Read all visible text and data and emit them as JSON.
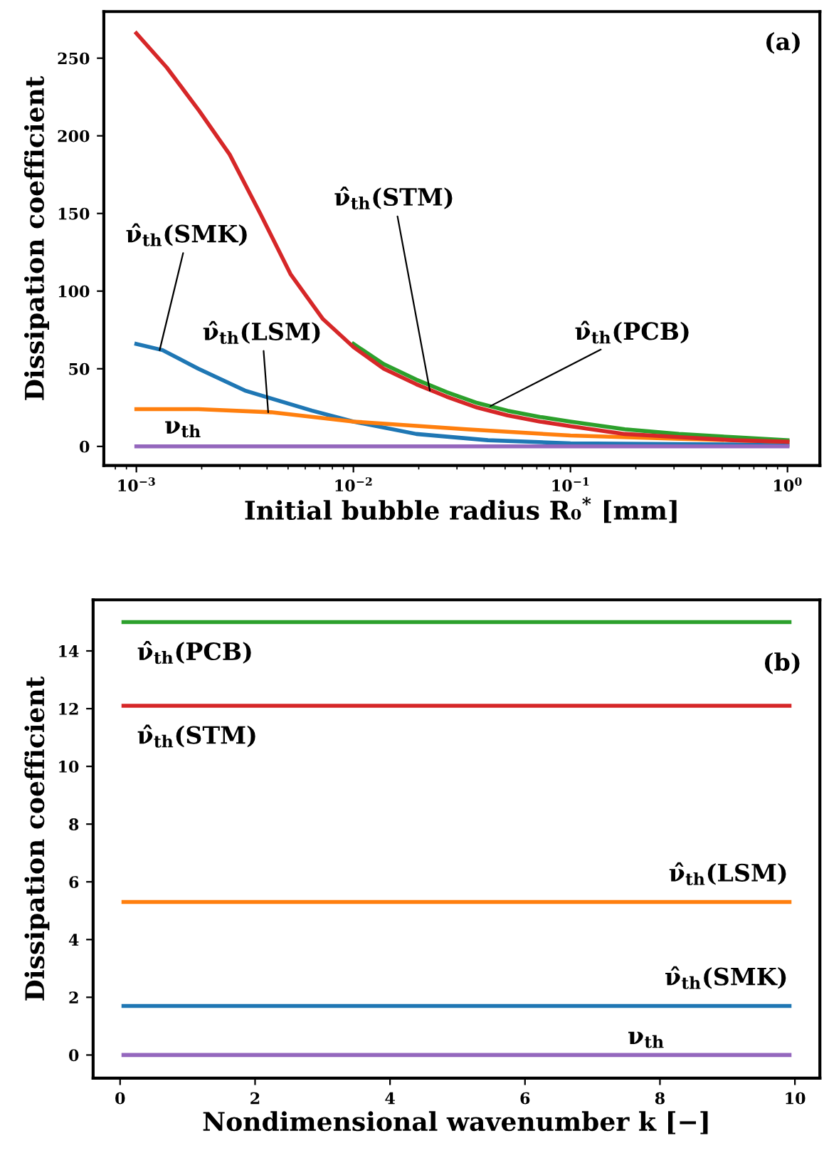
{
  "chart_data": [
    {
      "type": "line",
      "ylabel": "Dissipation coefficient",
      "xlabel": "Initial bubble radius R₀$^{*}$ [mm]",
      "log": "x",
      "x": [
        0.001,
        0.00138,
        0.00195,
        0.00269,
        0.00372,
        0.00513,
        0.00724,
        0.01,
        0.0138,
        0.0195,
        0.0269,
        0.0372,
        0.0513,
        0.0724,
        0.1,
        0.178,
        0.316,
        0.562,
        1.0
      ],
      "xlim": [
        0.000708,
        1.41
      ],
      "ylim": [
        -12.3,
        280
      ],
      "xticks": [
        {
          "value": 0.001,
          "label": "10$^{−3}$"
        },
        {
          "value": 0.01,
          "label": "10$^{−2}$"
        },
        {
          "value": 0.1,
          "label": "10$^{−1}$"
        },
        {
          "value": 1,
          "label": "10$^{0}$"
        }
      ],
      "yticks": [
        0,
        50,
        100,
        150,
        200,
        250
      ],
      "grid": false,
      "legend": false,
      "series": [
        {
          "color": "#1f77b4",
          "x": [
            0.001,
            0.00132,
            0.00193,
            0.00316,
            0.00372,
            0.00645,
            0.01,
            0.0195,
            0.0417,
            0.1,
            1.0
          ],
          "values": [
            66,
            62,
            50,
            36,
            33,
            23,
            16,
            8,
            4,
            2,
            1
          ]
        },
        {
          "color": "#ff7f0e",
          "x": [
            0.001,
            0.00193,
            0.00417,
            0.01,
            0.0331,
            0.1,
            0.302,
            1.0
          ],
          "values": [
            24,
            24,
            22,
            16,
            11,
            7,
            5,
            3
          ]
        },
        {
          "color": "#2ca02c",
          "x": [
            0.01,
            0.0138,
            0.0195,
            0.0269,
            0.0372,
            0.0513,
            0.0724,
            0.1,
            0.178,
            0.316,
            0.562,
            1.0
          ],
          "values": [
            66,
            53,
            43,
            35,
            28,
            23,
            19,
            16,
            11,
            8,
            6,
            4
          ]
        },
        {
          "color": "#d62728",
          "values": [
            266,
            244,
            216,
            188,
            150,
            111,
            82,
            64,
            50,
            40,
            32,
            25,
            20,
            16,
            13,
            8,
            6,
            4,
            3
          ]
        },
        {
          "color": "#9467bd",
          "x": [
            0.001,
            1.0
          ],
          "values": [
            0,
            0
          ]
        }
      ],
      "annotations": [
        {
          "text": "ν̂$_{th}$(SMK)",
          "x": 0.00128,
          "y": 62
        },
        {
          "text": "ν̂$_{th}$(LSM)",
          "x": 0.00405,
          "y": 22
        },
        {
          "text": "ν̂$_{th}$(STM)",
          "x": 0.0225,
          "y": 36
        },
        {
          "text": "ν̂$_{th}$(PCB)",
          "x": 0.0428,
          "y": 26
        },
        {
          "text": "ν$_{th}$",
          "x": 0.00164,
          "y": 0
        },
        "(a)"
      ]
    },
    {
      "type": "line",
      "ylabel": "Dissipation coefficient",
      "xlabel": "Nondimensional wavenumber k [−]",
      "x": [
        0.05,
        9.92
      ],
      "xlim": [
        -0.4,
        10.37
      ],
      "ylim": [
        -0.8,
        15.77
      ],
      "xticks": [
        0,
        2,
        4,
        6,
        8,
        10
      ],
      "yticks": [
        0,
        2,
        4,
        6,
        8,
        10,
        12,
        14
      ],
      "grid": false,
      "legend": false,
      "series": [
        {
          "color": "#2ca02c",
          "values": [
            15.0,
            15.0
          ]
        },
        {
          "color": "#d62728",
          "values": [
            12.1,
            12.1
          ]
        },
        {
          "color": "#ff7f0e",
          "values": [
            5.3,
            5.3
          ]
        },
        {
          "color": "#1f77b4",
          "values": [
            1.7,
            1.7
          ]
        },
        {
          "color": "#9467bd",
          "values": [
            0,
            0
          ]
        }
      ],
      "annotations": [
        {
          "text": "ν̂$_{th}$(PCB)",
          "x": 0.25,
          "y": 15.0
        },
        {
          "text": "ν̂$_{th}$(STM)",
          "x": 0.25,
          "y": 12.1
        },
        {
          "text": "ν̂$_{th}$(LSM)",
          "x": 9.9,
          "y": 5.3
        },
        {
          "text": "ν̂$_{th}$(SMK)",
          "x": 9.9,
          "y": 1.7
        },
        {
          "text": "ν$_{th}$",
          "x": 7.52,
          "y": 0
        },
        "(b)"
      ]
    }
  ]
}
